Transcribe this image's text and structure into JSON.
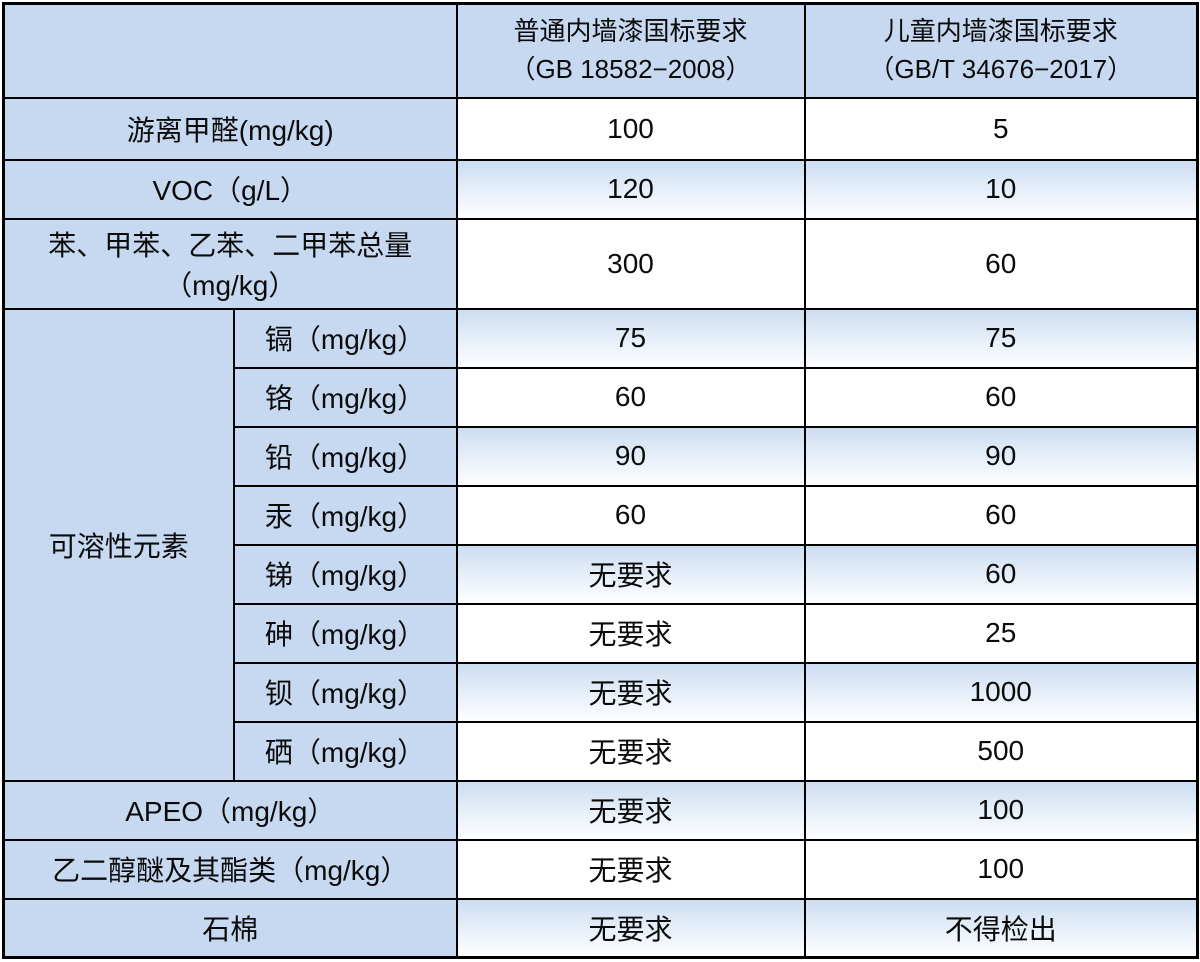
{
  "colors": {
    "cell_blue": "#c6d9f0",
    "row_gradient_top": "#cbddf1",
    "row_gradient_bottom": "#fdfeff",
    "border": "#000000"
  },
  "chart_data": {
    "type": "table",
    "header": {
      "corner": "",
      "columns": [
        {
          "line1": "普通内墙漆国标要求",
          "line2": "（GB 18582−2008）"
        },
        {
          "line1": "儿童内墙漆国标要求",
          "line2": "（GB/T 34676−2017）"
        }
      ]
    },
    "top_rows": [
      {
        "label": "游离甲醛(mg/kg)",
        "ordinary": "100",
        "children": "5"
      },
      {
        "label": "VOC（g/L）",
        "ordinary": "120",
        "children": "10"
      },
      {
        "label": "苯、甲苯、乙苯、二甲苯总量（mg/kg）",
        "ordinary": "300",
        "children": "60"
      }
    ],
    "soluble_group": {
      "label": "可溶性元素",
      "rows": [
        {
          "label": "镉（mg/kg）",
          "ordinary": "75",
          "children": "75"
        },
        {
          "label": "铬（mg/kg）",
          "ordinary": "60",
          "children": "60"
        },
        {
          "label": "铅（mg/kg）",
          "ordinary": "90",
          "children": "90"
        },
        {
          "label": "汞（mg/kg）",
          "ordinary": "60",
          "children": "60"
        },
        {
          "label": "锑（mg/kg）",
          "ordinary": "无要求",
          "children": "60"
        },
        {
          "label": "砷（mg/kg）",
          "ordinary": "无要求",
          "children": "25"
        },
        {
          "label": "钡（mg/kg）",
          "ordinary": "无要求",
          "children": "1000"
        },
        {
          "label": "硒（mg/kg）",
          "ordinary": "无要求",
          "children": "500"
        }
      ]
    },
    "bottom_rows": [
      {
        "label": "APEO（mg/kg）",
        "ordinary": "无要求",
        "children": "100"
      },
      {
        "label": "乙二醇醚及其酯类（mg/kg）",
        "ordinary": "无要求",
        "children": "100"
      },
      {
        "label": "石棉",
        "ordinary": "无要求",
        "children": "不得检出"
      }
    ]
  }
}
